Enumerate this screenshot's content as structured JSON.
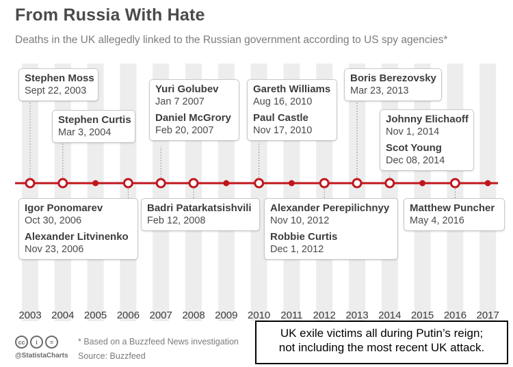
{
  "header": {
    "title": "From Russia With Hate",
    "subtitle": "Deaths in the UK allegedly linked to the Russian government according to US spy agencies*"
  },
  "chart_data": {
    "type": "timeline",
    "years": [
      "2003",
      "2004",
      "2005",
      "2006",
      "2007",
      "2008",
      "2009",
      "2010",
      "2011",
      "2012",
      "2013",
      "2014",
      "2015",
      "2016",
      "2017"
    ],
    "events": [
      {
        "year": 2003,
        "position": "above",
        "entries": [
          {
            "name": "Stephen Moss",
            "date": "Sept 22, 2003"
          }
        ]
      },
      {
        "year": 2004,
        "position": "above",
        "entries": [
          {
            "name": "Stephen Curtis",
            "date": "Mar 3, 2004"
          }
        ]
      },
      {
        "year": 2006,
        "position": "below",
        "entries": [
          {
            "name": "Igor Ponomarev",
            "date": "Oct 30, 2006"
          },
          {
            "name": "Alexander Litvinenko",
            "date": "Nov 23, 2006"
          }
        ]
      },
      {
        "year": 2007,
        "position": "above",
        "entries": [
          {
            "name": "Yuri Golubev",
            "date": "Jan 7 2007"
          },
          {
            "name": "Daniel McGrory",
            "date": "Feb 20, 2007"
          }
        ]
      },
      {
        "year": 2008,
        "position": "below",
        "entries": [
          {
            "name": "Badri Patarkatsishvili",
            "date": "Feb 12, 2008"
          }
        ]
      },
      {
        "year": 2010,
        "position": "above",
        "entries": [
          {
            "name": "Gareth Williams",
            "date": "Aug 16, 2010"
          },
          {
            "name": "Paul Castle",
            "date": "Nov 17, 2010"
          }
        ]
      },
      {
        "year": 2012,
        "position": "below",
        "entries": [
          {
            "name": "Alexander Perepilichnyy",
            "date": "Nov 10, 2012"
          },
          {
            "name": "Robbie Curtis",
            "date": "Dec 1, 2012"
          }
        ]
      },
      {
        "year": 2013,
        "position": "above",
        "entries": [
          {
            "name": "Boris Berezovsky",
            "date": "Mar 23, 2013"
          }
        ]
      },
      {
        "year": 2014,
        "position": "above",
        "entries": [
          {
            "name": "Johnny Elichaoff",
            "date": "Nov 1, 2014"
          },
          {
            "name": "Scot Young",
            "date": "Dec 08, 2014"
          }
        ]
      },
      {
        "year": 2016,
        "position": "below",
        "entries": [
          {
            "name": "Matthew Puncher",
            "date": "May 4, 2016"
          }
        ]
      }
    ],
    "colors": {
      "line": "#c0161c",
      "band": "#ededed",
      "marker_fill": "#ffffff"
    }
  },
  "footer": {
    "cc_icons": [
      "cc",
      "i",
      "="
    ],
    "handle": "@StatistaCharts",
    "note": "* Based on a Buzzfeed News investigation",
    "source": "Source: Buzzfeed"
  },
  "overlay": {
    "line1": "UK exile victims all during Putin’s reign;",
    "line2": "not including the most recent UK attack."
  }
}
